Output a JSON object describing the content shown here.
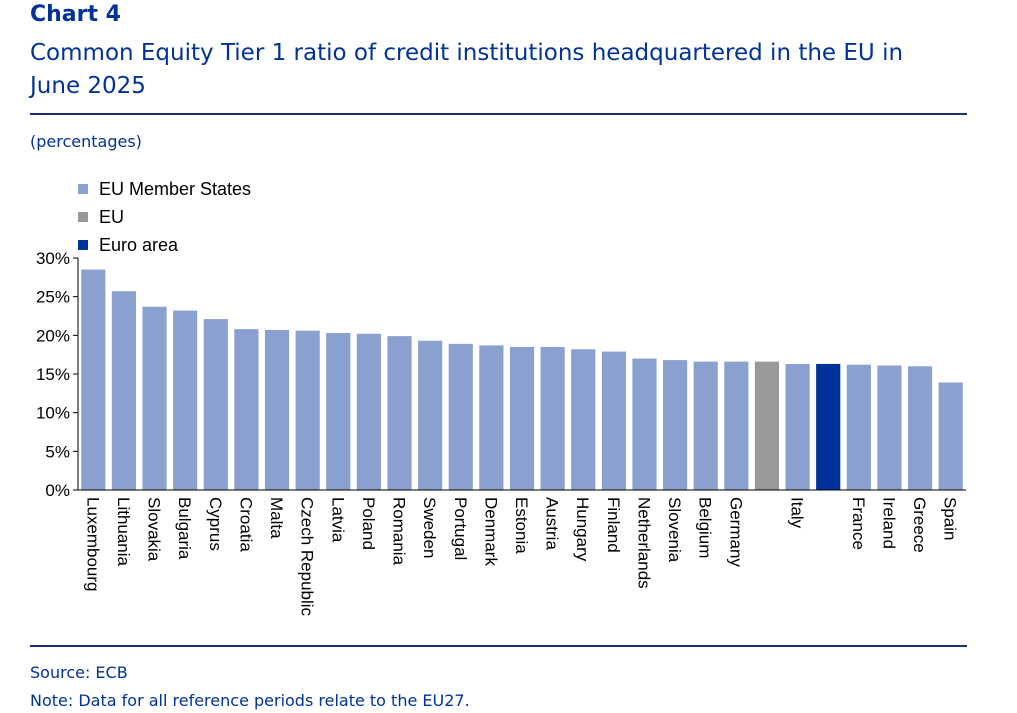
{
  "header": {
    "chart_number": "Chart 4",
    "title": "Common Equity Tier 1 ratio of credit institutions headquartered in the EU in June 2025",
    "unit": "(percentages)"
  },
  "legend": [
    {
      "label": "EU Member States",
      "color": "#8aa1d0"
    },
    {
      "label": "EU",
      "color": "#999999"
    },
    {
      "label": "Euro area",
      "color": "#003299"
    }
  ],
  "footer": {
    "source": "Source: ECB",
    "note": "Note: Data for all reference periods relate to the EU27."
  },
  "chart_data": {
    "type": "bar",
    "title": "Common Equity Tier 1 ratio of credit institutions headquartered in the EU in June 2025",
    "ylabel": "",
    "xlabel": "",
    "ylim": [
      0,
      30
    ],
    "yticks": [
      "0%",
      "5%",
      "10%",
      "15%",
      "20%",
      "25%",
      "30%"
    ],
    "categories": [
      "Luxembourg",
      "Lithuania",
      "Slovakia",
      "Bulgaria",
      "Cyprus",
      "Croatia",
      "Malta",
      "Czech Republic",
      "Latvia",
      "Poland",
      "Romania",
      "Sweden",
      "Portugal",
      "Denmark",
      "Estonia",
      "Austria",
      "Hungary",
      "Finland",
      "Netherlands",
      "Slovenia",
      "Belgium",
      "Germany",
      "",
      "Italy",
      "",
      "France",
      "Ireland",
      "Greece",
      "Spain"
    ],
    "values": [
      28.5,
      25.7,
      23.7,
      23.2,
      22.1,
      20.8,
      20.7,
      20.6,
      20.3,
      20.2,
      19.9,
      19.3,
      18.9,
      18.7,
      18.5,
      18.5,
      18.2,
      17.9,
      17.0,
      16.8,
      16.6,
      16.6,
      16.6,
      16.3,
      16.3,
      16.2,
      16.1,
      16.0,
      13.9
    ],
    "groups": [
      "member",
      "member",
      "member",
      "member",
      "member",
      "member",
      "member",
      "member",
      "member",
      "member",
      "member",
      "member",
      "member",
      "member",
      "member",
      "member",
      "member",
      "member",
      "member",
      "member",
      "member",
      "member",
      "eu",
      "member",
      "euro",
      "member",
      "member",
      "member",
      "member"
    ],
    "series_colors": {
      "member": "#8aa1d0",
      "eu": "#999999",
      "euro": "#003299"
    },
    "legend_position": "top-left",
    "grid": false
  }
}
